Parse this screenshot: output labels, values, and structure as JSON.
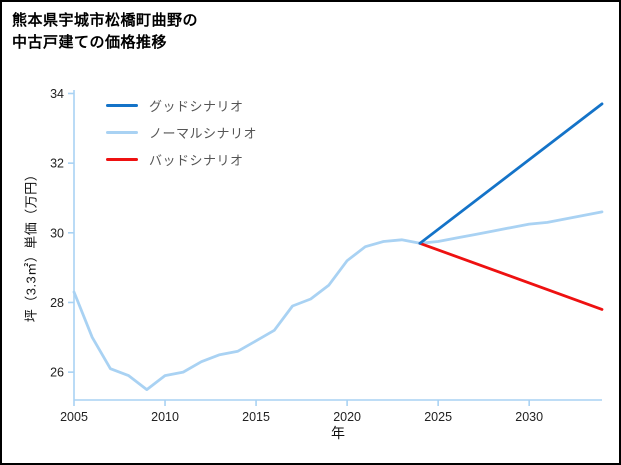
{
  "header": {
    "title_line1": "熊本県宇城市松橋町曲野の",
    "title_line2": "中古戸建ての価格推移"
  },
  "chart_data": {
    "type": "line",
    "title": "熊本県宇城市松橋町曲野の中古戸建ての価格推移",
    "xlabel": "年",
    "ylabel": "坪（3.3㎡）単価（万円）",
    "xlim": [
      2005,
      2034
    ],
    "ylim": [
      25.2,
      34.1
    ],
    "xticks": [
      2005,
      2010,
      2015,
      2020,
      2025,
      2030
    ],
    "yticks": [
      26,
      28,
      30,
      32,
      34
    ],
    "grid": false,
    "legend_position": "upper-left",
    "axis_color": "#a9d2f3",
    "series": [
      {
        "id": "good-scenario",
        "name": "グッドシナリオ",
        "color": "#1473c8",
        "x": [
          2024,
          2034
        ],
        "y": [
          29.7,
          33.7
        ]
      },
      {
        "id": "normal-scenario",
        "name": "ノーマルシナリオ",
        "color": "#a9d2f3",
        "x": [
          2005,
          2006,
          2007,
          2008,
          2009,
          2010,
          2011,
          2012,
          2013,
          2014,
          2015,
          2016,
          2017,
          2018,
          2019,
          2020,
          2021,
          2022,
          2023,
          2024,
          2025,
          2026,
          2027,
          2028,
          2029,
          2030,
          2031,
          2032,
          2033,
          2034
        ],
        "y": [
          28.3,
          27.0,
          26.1,
          25.9,
          25.5,
          25.9,
          26.0,
          26.3,
          26.5,
          26.6,
          26.9,
          27.2,
          27.9,
          28.1,
          28.5,
          29.2,
          29.6,
          29.75,
          29.8,
          29.7,
          29.75,
          29.85,
          29.95,
          30.05,
          30.15,
          30.25,
          30.3,
          30.4,
          30.5,
          30.6
        ]
      },
      {
        "id": "bad-scenario",
        "name": "バッドシナリオ",
        "color": "#ee1111",
        "x": [
          2024,
          2034
        ],
        "y": [
          29.7,
          27.8
        ]
      }
    ]
  }
}
